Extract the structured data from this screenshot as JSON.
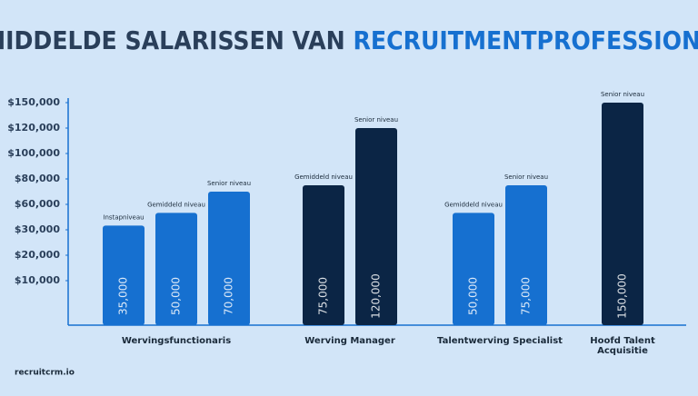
{
  "chart_data": {
    "type": "bar",
    "title": "GEMIDDELDE SALARISSEN VAN",
    "title_highlight": "RECRUITMENTPROFESSIONALS",
    "source": "recruitcrm.io",
    "ylim": [
      0,
      150000
    ],
    "yticks": [
      {
        "value": 150000,
        "label": "$150,000"
      },
      {
        "value": 120000,
        "label": "$120,000"
      },
      {
        "value": 100000,
        "label": "$100,000"
      },
      {
        "value": 80000,
        "label": "$80,000"
      },
      {
        "value": 60000,
        "label": "$60,000"
      },
      {
        "value": 30000,
        "label": "$30,000"
      },
      {
        "value": 20000,
        "label": "$20,000"
      },
      {
        "value": 10000,
        "label": "$10,000"
      }
    ],
    "groups": [
      {
        "category": "Wervingsfunctionaris",
        "color": "#1670d0",
        "bars": [
          {
            "name": "Instapniveau",
            "value": 35000,
            "value_label": "35,000"
          },
          {
            "name": "Gemiddeld niveau",
            "value": 50000,
            "value_label": "50,000"
          },
          {
            "name": "Senior niveau",
            "value": 70000,
            "value_label": "70,000"
          }
        ]
      },
      {
        "category": "Werving Manager",
        "color": "#0b2545",
        "bars": [
          {
            "name": "Gemiddeld niveau",
            "value": 75000,
            "value_label": "75,000"
          },
          {
            "name": "Senior niveau",
            "value": 120000,
            "value_label": "120,000"
          }
        ]
      },
      {
        "category": "Talentwerving Specialist",
        "color": "#1670d0",
        "bars": [
          {
            "name": "Gemiddeld niveau",
            "value": 50000,
            "value_label": "50,000"
          },
          {
            "name": "Senior niveau",
            "value": 75000,
            "value_label": "75,000"
          }
        ]
      },
      {
        "category": "Hoofd Talent Acquisitie",
        "color": "#0b2545",
        "bars": [
          {
            "name": "Senior niveau",
            "value": 150000,
            "value_label": "150,000"
          }
        ]
      }
    ]
  }
}
